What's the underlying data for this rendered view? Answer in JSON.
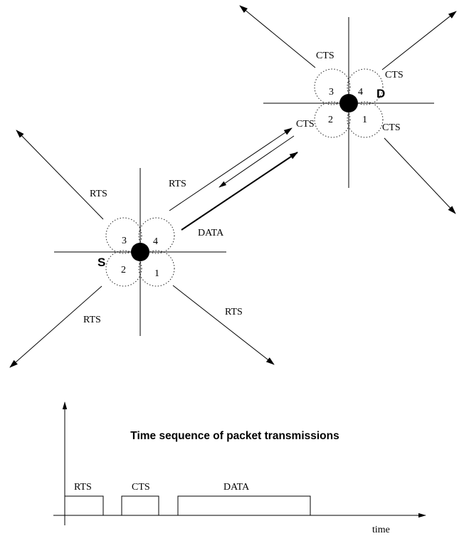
{
  "diagram": {
    "source_node": {
      "label": "S",
      "sectors": [
        "1",
        "2",
        "3",
        "4"
      ],
      "broadcast_labels": [
        "RTS",
        "RTS",
        "RTS",
        "RTS"
      ]
    },
    "destination_node": {
      "label": "D",
      "sectors": [
        "1",
        "2",
        "3",
        "4"
      ],
      "broadcast_labels": [
        "CTS",
        "CTS",
        "CTS",
        "CTS"
      ]
    },
    "link_labels": {
      "rts": "RTS",
      "data": "DATA"
    }
  },
  "timeline": {
    "title": "Time sequence of packet transmissions",
    "axis_label": "time",
    "packets": [
      "RTS",
      "CTS",
      "DATA"
    ]
  }
}
